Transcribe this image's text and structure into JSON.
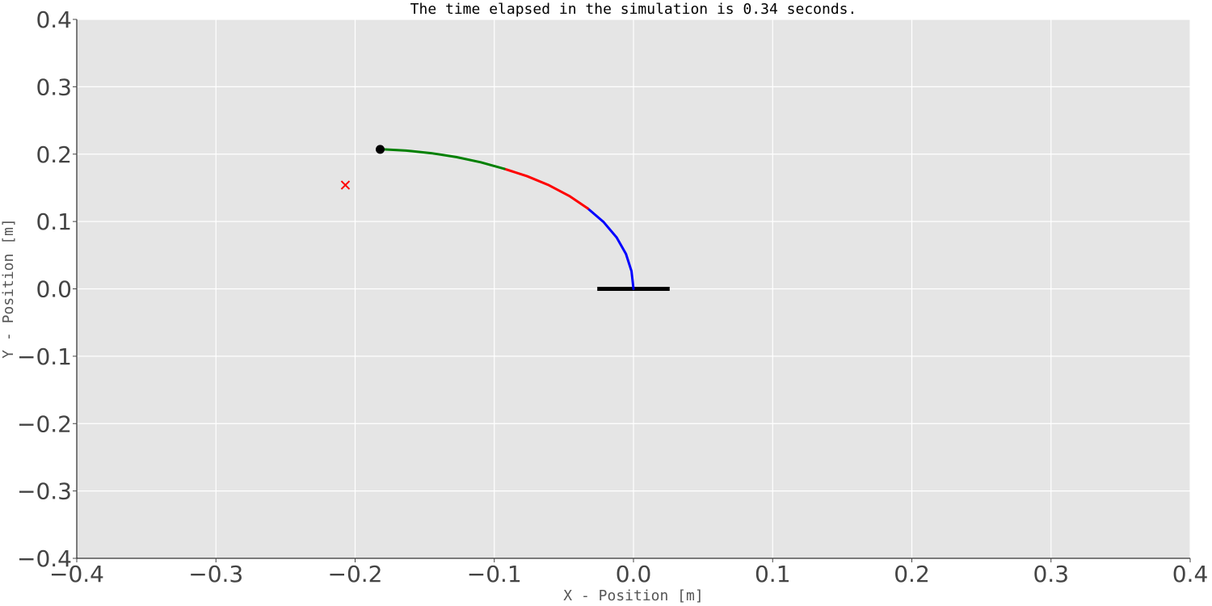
{
  "chart_data": {
    "type": "line",
    "title": "The time elapsed in the simulation is 0.34 seconds.",
    "xlabel": "X - Position [m]",
    "ylabel": "Y - Position [m]",
    "xlim": [
      -0.4,
      0.4
    ],
    "ylim": [
      -0.4,
      0.4
    ],
    "xticks": [
      -0.4,
      -0.3,
      -0.2,
      -0.1,
      0.0,
      0.1,
      0.2,
      0.3,
      0.4
    ],
    "yticks": [
      -0.4,
      -0.3,
      -0.2,
      -0.1,
      0.0,
      0.1,
      0.2,
      0.3,
      0.4
    ],
    "xtick_labels": [
      "−0.4",
      "−0.3",
      "−0.2",
      "−0.1",
      "0.0",
      "0.1",
      "0.2",
      "0.3",
      "0.4"
    ],
    "ytick_labels": [
      "−0.4",
      "−0.3",
      "−0.2",
      "−0.1",
      "0.0",
      "0.1",
      "0.2",
      "0.3",
      "0.4"
    ],
    "grid": true,
    "background_color": "#e5e5e5",
    "grid_color": "#ffffff",
    "base": {
      "x": [
        -0.026,
        0.026
      ],
      "y": [
        0.0,
        0.0
      ],
      "color": "#000000"
    },
    "series": [
      {
        "color": "#0000ff",
        "x": [
          0.0,
          -0.0014,
          -0.0054,
          -0.0121,
          -0.0214,
          -0.0329
        ],
        "y": [
          0.0,
          0.0191,
          0.0378,
          0.0556,
          0.0722,
          0.0871
        ]
      },
      {
        "color": "#ff0000",
        "x": [
          -0.0329,
          -0.0461,
          -0.0607,
          -0.0764,
          -0.0928
        ],
        "y": [
          0.0871,
          0.1005,
          0.1121,
          0.1219,
          0.1299
        ]
      },
      {
        "color": "#008000",
        "x": [
          -0.0928,
          -0.1098,
          -0.1273,
          -0.1452,
          -0.1634,
          -0.1818
        ],
        "y": [
          0.1299,
          0.137,
          0.1426,
          0.1468,
          0.1496,
          0.1511
        ]
      }
    ],
    "tip_marker": {
      "x": -0.182,
      "y": 0.207,
      "color": "#000000"
    },
    "target_marker": {
      "x": -0.207,
      "y": 0.154,
      "color": "#ff0000",
      "symbol": "x"
    }
  }
}
